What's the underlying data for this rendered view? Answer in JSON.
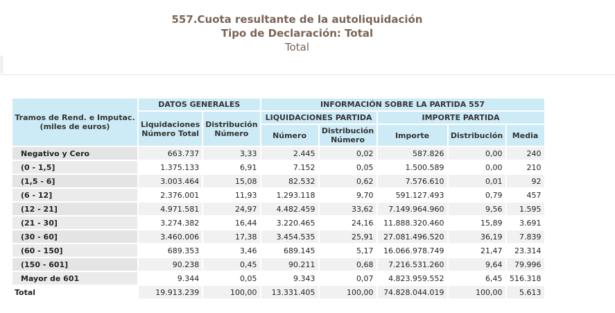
{
  "header": {
    "title": "557.Cuota resultante de la autoliquidación",
    "subtitle": "Tipo de Declaración: Total",
    "subsubtitle": "Total"
  },
  "table": {
    "row_header": "Tramos de Rend. e Imputac. (miles de euros)",
    "group1": "DATOS GENERALES",
    "group2": "INFORMACIÓN SOBRE LA PARTIDA 557",
    "sub1": "LIQUIDACIONES PARTIDA",
    "sub2": "IMPORTE PARTIDA",
    "columns": [
      "Liquidaciones Número Total",
      "Distribución Número",
      "Número",
      "Distribución Número",
      "Importe",
      "Distribución",
      "Media"
    ],
    "rows": [
      [
        "Negativo y Cero",
        "663.737",
        "3,33",
        "2.445",
        "0,02",
        "587.826",
        "0,00",
        "240"
      ],
      [
        "(0 - 1,5]",
        "1.375.133",
        "6,91",
        "7.152",
        "0,05",
        "1.500.589",
        "0,00",
        "210"
      ],
      [
        "(1,5 - 6]",
        "3.003.464",
        "15,08",
        "82.532",
        "0,62",
        "7.576.610",
        "0,01",
        "92"
      ],
      [
        "(6 - 12]",
        "2.376.001",
        "11,93",
        "1.293.118",
        "9,70",
        "591.127.493",
        "0,79",
        "457"
      ],
      [
        "(12 - 21]",
        "4.971.581",
        "24,97",
        "4.482.459",
        "33,62",
        "7.149.964.960",
        "9,56",
        "1.595"
      ],
      [
        "(21 - 30]",
        "3.274.382",
        "16,44",
        "3.220.465",
        "24,16",
        "11.888.320.460",
        "15,89",
        "3.691"
      ],
      [
        "(30 - 60]",
        "3.460.006",
        "17,38",
        "3.454.535",
        "25,91",
        "27.081.496.520",
        "36,19",
        "7.839"
      ],
      [
        "(60 - 150]",
        "689.353",
        "3,46",
        "689.145",
        "5,17",
        "16.066.978.749",
        "21,47",
        "23.314"
      ],
      [
        "(150 - 601]",
        "90.238",
        "0,45",
        "90.211",
        "0,68",
        "7.216.531.260",
        "9,64",
        "79.996"
      ],
      [
        "Mayor de 601",
        "9.344",
        "0,05",
        "9.343",
        "0,07",
        "4.823.959.552",
        "6,45",
        "516.318"
      ],
      [
        "Total",
        "19.913.239",
        "100,00",
        "13.331.405",
        "100,00",
        "74.828.044.019",
        "100,00",
        "5.613"
      ]
    ]
  }
}
